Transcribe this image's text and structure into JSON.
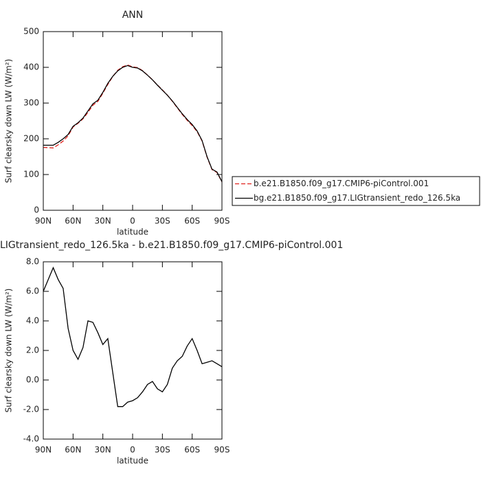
{
  "chart_data": [
    {
      "type": "line",
      "title": "ANN",
      "xlabel": "latitude",
      "ylabel": "Surf clearsky down LW (W/m²)",
      "x": [
        90,
        85,
        80,
        75,
        70,
        65,
        60,
        55,
        50,
        45,
        40,
        35,
        30,
        25,
        20,
        15,
        10,
        5,
        0,
        -5,
        -10,
        -15,
        -20,
        -25,
        -30,
        -35,
        -40,
        -45,
        -50,
        -55,
        -60,
        -65,
        -70,
        -75,
        -80,
        -85,
        -90
      ],
      "series": [
        {
          "name": "b.e21.B1850.f09_g17.CMIP6-piControl.001",
          "color": "#e0201b",
          "dash": "dashed",
          "values": [
            176,
            175.2,
            174.4,
            183.2,
            193.8,
            208.5,
            233,
            243.6,
            255.8,
            274,
            294.1,
            304.8,
            327.6,
            352.2,
            374.5,
            391.8,
            401.8,
            406.5,
            401.4,
            399.2,
            390.8,
            378.3,
            365.1,
            350.6,
            336.8,
            322.3,
            305.2,
            286.7,
            268.4,
            251.7,
            237.2,
            220,
            193.9,
            148.8,
            113.7,
            105.9,
            79.1
          ]
        },
        {
          "name": "bg.e21.B1850.f09_g17.LIGtransient_redo_126.5ka",
          "color": "#000000",
          "dash": "solid",
          "values": [
            182,
            182,
            182,
            190,
            200,
            212,
            235,
            245,
            258,
            278,
            298,
            308,
            330,
            355,
            375,
            390,
            400,
            405,
            400,
            398,
            390,
            378,
            365,
            350,
            336,
            322,
            306,
            288,
            270,
            254,
            240,
            222,
            195,
            150,
            115,
            107,
            80
          ]
        }
      ],
      "xlim": [
        90,
        -90
      ],
      "xticks": [
        {
          "value": 90,
          "label": "90N"
        },
        {
          "value": 60,
          "label": "60N"
        },
        {
          "value": 30,
          "label": "30N"
        },
        0,
        {
          "value": -30,
          "label": "30S"
        },
        {
          "value": -60,
          "label": "60S"
        },
        {
          "value": -90,
          "label": "90S"
        }
      ],
      "ylim": [
        0,
        500
      ],
      "yticks": [
        0,
        100,
        200,
        300,
        400,
        500
      ],
      "legend": "outside-right"
    },
    {
      "type": "line",
      "title": "LIGtransient_redo_126.5ka - b.e21.B1850.f09_g17.CMIP6-piControl.001",
      "xlabel": "latitude",
      "ylabel": "Surf clearsky down LW (W/m²)",
      "x": [
        90,
        85,
        80,
        75,
        70,
        65,
        60,
        55,
        50,
        45,
        40,
        35,
        30,
        25,
        20,
        15,
        10,
        5,
        0,
        -5,
        -10,
        -15,
        -20,
        -25,
        -30,
        -35,
        -40,
        -45,
        -50,
        -55,
        -60,
        -65,
        -70,
        -75,
        -80,
        -85,
        -90
      ],
      "color": "#000000",
      "values": [
        6.0,
        6.8,
        7.6,
        6.8,
        6.2,
        3.5,
        2.0,
        1.4,
        2.2,
        4.0,
        3.9,
        3.2,
        2.4,
        2.8,
        0.5,
        -1.8,
        -1.8,
        -1.5,
        -1.4,
        -1.2,
        -0.8,
        -0.3,
        -0.1,
        -0.6,
        -0.8,
        -0.3,
        0.8,
        1.3,
        1.6,
        2.3,
        2.8,
        2.0,
        1.1,
        1.2,
        1.3,
        1.1,
        0.9
      ],
      "xlim": [
        90,
        -90
      ],
      "xticks": [
        {
          "value": 90,
          "label": "90N"
        },
        {
          "value": 60,
          "label": "60N"
        },
        {
          "value": 30,
          "label": "30N"
        },
        0,
        {
          "value": -30,
          "label": "30S"
        },
        {
          "value": -60,
          "label": "60S"
        },
        {
          "value": -90,
          "label": "90S"
        }
      ],
      "ylim": [
        -4,
        8
      ],
      "yticks": [
        {
          "value": 8,
          "label": "8.0"
        },
        {
          "value": 6,
          "label": "6.0"
        },
        {
          "value": 4,
          "label": "4.0"
        },
        {
          "value": 2,
          "label": "2.0"
        },
        {
          "value": 0,
          "label": "0.0"
        },
        {
          "value": -2,
          "label": "-2.0"
        },
        {
          "value": -4,
          "label": "-4.0"
        }
      ]
    }
  ]
}
